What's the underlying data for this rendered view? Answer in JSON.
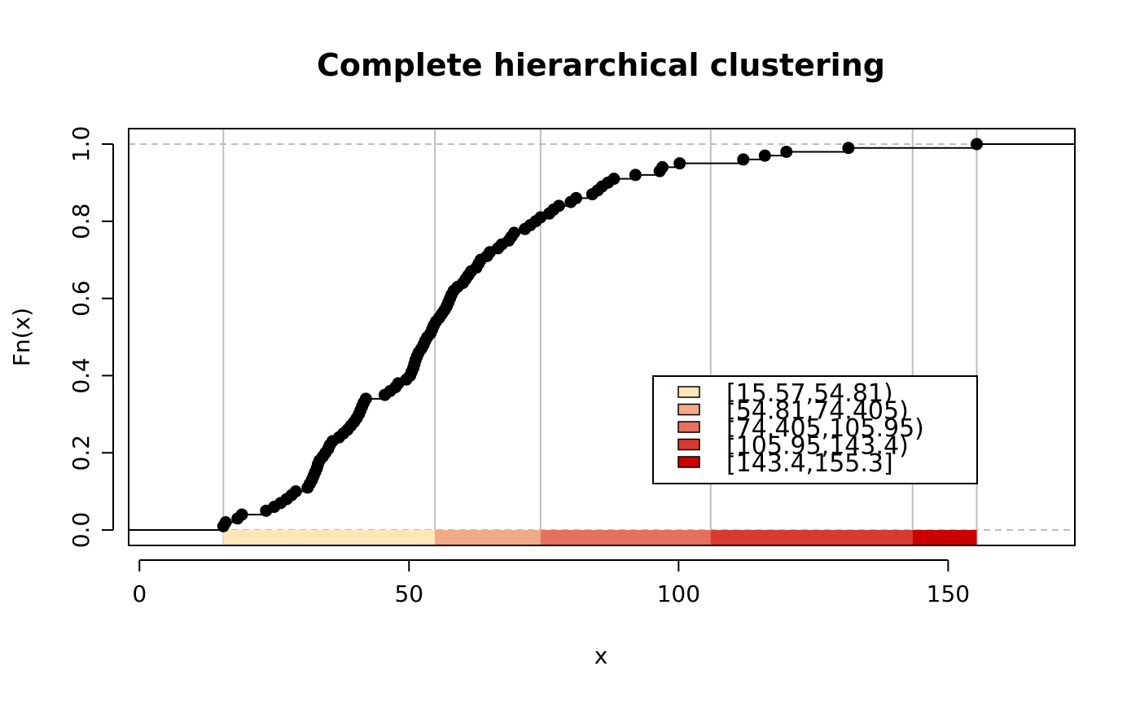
{
  "chart_data": {
    "type": "line",
    "subtype": "ecdf-step",
    "title": "Complete hierarchical clustering",
    "xlabel": "x",
    "ylabel": "Fn(x)",
    "xlim": [
      -2,
      173.5
    ],
    "ylim": [
      -0.04,
      1.04
    ],
    "x_ticks": [
      0,
      50,
      100,
      150
    ],
    "y_ticks": [
      0.0,
      0.2,
      0.4,
      0.6,
      0.8,
      1.0
    ],
    "x_tick_labels": [
      "0",
      "50",
      "100",
      "150"
    ],
    "y_tick_labels": [
      "0.0",
      "0.2",
      "0.4",
      "0.6",
      "0.8",
      "1.0"
    ],
    "grid": "vertical lines at class breaks; dashed horizontal lines at 0 and 1",
    "break_points": [
      15.57,
      54.81,
      74.405,
      105.95,
      143.4,
      155.3
    ],
    "classes": [
      {
        "label": "[15.57,54.81)",
        "from": 15.57,
        "to": 54.81,
        "color": "#FDE6B8"
      },
      {
        "label": "[54.81,74.405)",
        "from": 54.81,
        "to": 74.405,
        "color": "#F1A987"
      },
      {
        "label": "[74.405,105.95)",
        "from": 74.405,
        "to": 105.95,
        "color": "#E6705E"
      },
      {
        "label": "[105.95,143.4)",
        "from": 105.95,
        "to": 143.4,
        "color": "#D93A2F"
      },
      {
        "label": "[143.4,155.3]",
        "from": 143.4,
        "to": 155.3,
        "color": "#CC0000"
      }
    ],
    "legend_placement": "right-center",
    "points": [
      [
        15.57,
        0.01
      ],
      [
        16.0,
        0.02
      ],
      [
        18.2,
        0.03
      ],
      [
        19.0,
        0.04
      ],
      [
        23.5,
        0.05
      ],
      [
        25.0,
        0.06
      ],
      [
        26.2,
        0.07
      ],
      [
        27.3,
        0.08
      ],
      [
        28.2,
        0.09
      ],
      [
        29.0,
        0.1
      ],
      [
        31.2,
        0.11
      ],
      [
        31.6,
        0.12
      ],
      [
        32.0,
        0.13
      ],
      [
        32.3,
        0.14
      ],
      [
        32.6,
        0.15
      ],
      [
        32.9,
        0.16
      ],
      [
        33.1,
        0.17
      ],
      [
        33.4,
        0.18
      ],
      [
        34.0,
        0.19
      ],
      [
        34.5,
        0.2
      ],
      [
        35.0,
        0.21
      ],
      [
        35.3,
        0.22
      ],
      [
        35.8,
        0.23
      ],
      [
        37.0,
        0.24
      ],
      [
        37.8,
        0.25
      ],
      [
        38.6,
        0.26
      ],
      [
        39.2,
        0.27
      ],
      [
        39.8,
        0.28
      ],
      [
        40.3,
        0.29
      ],
      [
        40.7,
        0.3
      ],
      [
        41.0,
        0.31
      ],
      [
        41.3,
        0.32
      ],
      [
        41.6,
        0.33
      ],
      [
        42.0,
        0.34
      ],
      [
        45.5,
        0.35
      ],
      [
        46.5,
        0.36
      ],
      [
        47.5,
        0.37
      ],
      [
        48.0,
        0.38
      ],
      [
        49.5,
        0.39
      ],
      [
        50.2,
        0.4
      ],
      [
        50.5,
        0.41
      ],
      [
        50.8,
        0.42
      ],
      [
        51.0,
        0.43
      ],
      [
        51.2,
        0.44
      ],
      [
        51.5,
        0.45
      ],
      [
        51.8,
        0.46
      ],
      [
        52.3,
        0.47
      ],
      [
        52.7,
        0.48
      ],
      [
        53.0,
        0.49
      ],
      [
        53.4,
        0.5
      ],
      [
        54.0,
        0.51
      ],
      [
        54.3,
        0.52
      ],
      [
        54.6,
        0.53
      ],
      [
        55.0,
        0.54
      ],
      [
        55.6,
        0.55
      ],
      [
        56.1,
        0.56
      ],
      [
        56.6,
        0.57
      ],
      [
        57.0,
        0.58
      ],
      [
        57.3,
        0.59
      ],
      [
        57.6,
        0.6
      ],
      [
        57.9,
        0.61
      ],
      [
        58.3,
        0.62
      ],
      [
        59.0,
        0.63
      ],
      [
        60.0,
        0.64
      ],
      [
        60.5,
        0.65
      ],
      [
        61.0,
        0.66
      ],
      [
        61.5,
        0.67
      ],
      [
        62.5,
        0.68
      ],
      [
        62.9,
        0.69
      ],
      [
        63.3,
        0.7
      ],
      [
        64.5,
        0.71
      ],
      [
        65.0,
        0.72
      ],
      [
        66.5,
        0.73
      ],
      [
        67.2,
        0.74
      ],
      [
        68.5,
        0.75
      ],
      [
        69.0,
        0.76
      ],
      [
        69.5,
        0.77
      ],
      [
        71.5,
        0.78
      ],
      [
        72.5,
        0.79
      ],
      [
        73.5,
        0.8
      ],
      [
        74.4,
        0.81
      ],
      [
        76.0,
        0.82
      ],
      [
        76.8,
        0.83
      ],
      [
        77.8,
        0.84
      ],
      [
        80.0,
        0.85
      ],
      [
        81.0,
        0.86
      ],
      [
        84.0,
        0.87
      ],
      [
        85.0,
        0.88
      ],
      [
        85.8,
        0.89
      ],
      [
        86.9,
        0.9
      ],
      [
        88.0,
        0.91
      ],
      [
        92.0,
        0.92
      ],
      [
        96.5,
        0.93
      ],
      [
        97.0,
        0.94
      ],
      [
        100.2,
        0.95
      ],
      [
        112.0,
        0.96
      ],
      [
        116.0,
        0.97
      ],
      [
        120.0,
        0.98
      ],
      [
        131.5,
        0.99
      ],
      [
        155.3,
        1.0
      ]
    ]
  }
}
